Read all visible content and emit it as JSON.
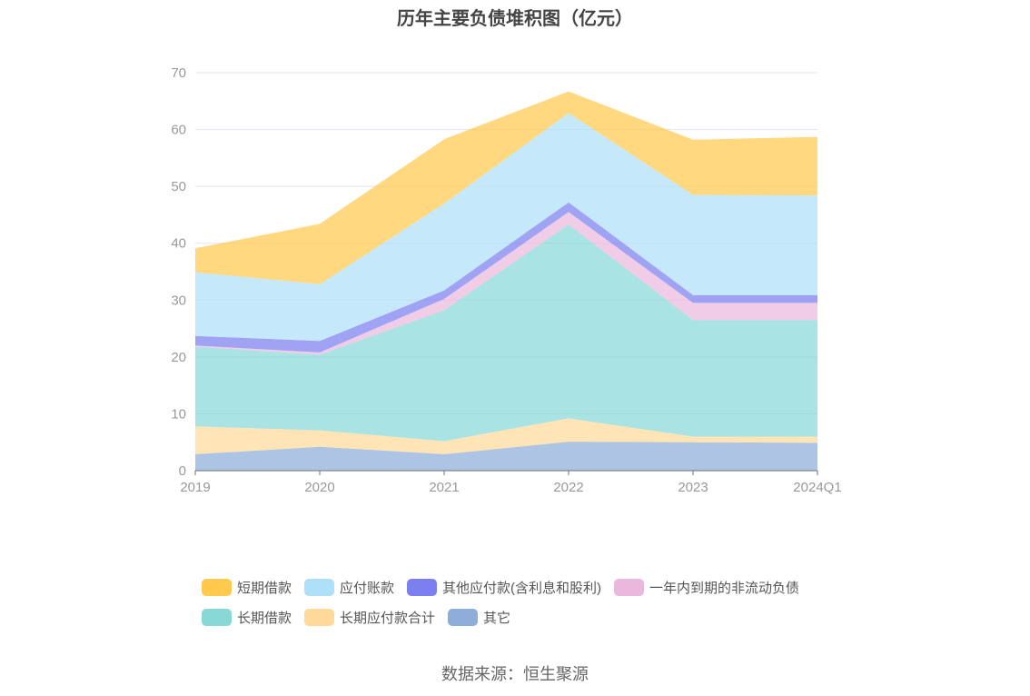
{
  "title": "历年主要负债堆积图（亿元）",
  "source": "数据来源：恒生聚源",
  "chart_data": {
    "type": "area",
    "stacked": true,
    "title": "历年主要负债堆积图（亿元）",
    "categories": [
      "2019",
      "2020",
      "2021",
      "2022",
      "2023",
      "2024Q1"
    ],
    "ylim": [
      0,
      70
    ],
    "yticks": [
      0,
      10,
      20,
      30,
      40,
      50,
      60,
      70
    ],
    "grid": true,
    "legend_position": "bottom",
    "series": [
      {
        "name": "其它",
        "color": "#8fadd9",
        "values": [
          2.9,
          4.2,
          2.9,
          5.1,
          5.0,
          4.9
        ]
      },
      {
        "name": "长期应付款合计",
        "color": "#ffd999",
        "values": [
          4.9,
          2.9,
          2.3,
          4.1,
          1.0,
          1.1
        ]
      },
      {
        "name": "长期借款",
        "color": "#88d8d8",
        "values": [
          14.0,
          13.3,
          23.0,
          34.1,
          20.5,
          20.5
        ]
      },
      {
        "name": "一年内到期的非流动负债",
        "color": "#eab8dd",
        "values": [
          0.2,
          0.4,
          2.0,
          2.2,
          3.0,
          3.0
        ]
      },
      {
        "name": "其他应付款(含利息和股利)",
        "color": "#7b7ff0",
        "values": [
          1.7,
          2.0,
          1.5,
          1.7,
          1.4,
          1.4
        ]
      },
      {
        "name": "应付账款",
        "color": "#aee0fa",
        "values": [
          11.2,
          10.0,
          15.3,
          15.7,
          17.6,
          17.5
        ]
      },
      {
        "name": "短期借款",
        "color": "#ffc94d",
        "values": [
          4.2,
          10.6,
          11.3,
          3.8,
          9.7,
          10.3
        ]
      }
    ]
  },
  "legend": {
    "row1": [
      "短期借款",
      "应付账款",
      "其他应付款(含利息和股利)",
      "一年内到期的非流动负债"
    ],
    "row2": [
      "长期借款",
      "长期应付款合计",
      "其它"
    ]
  }
}
